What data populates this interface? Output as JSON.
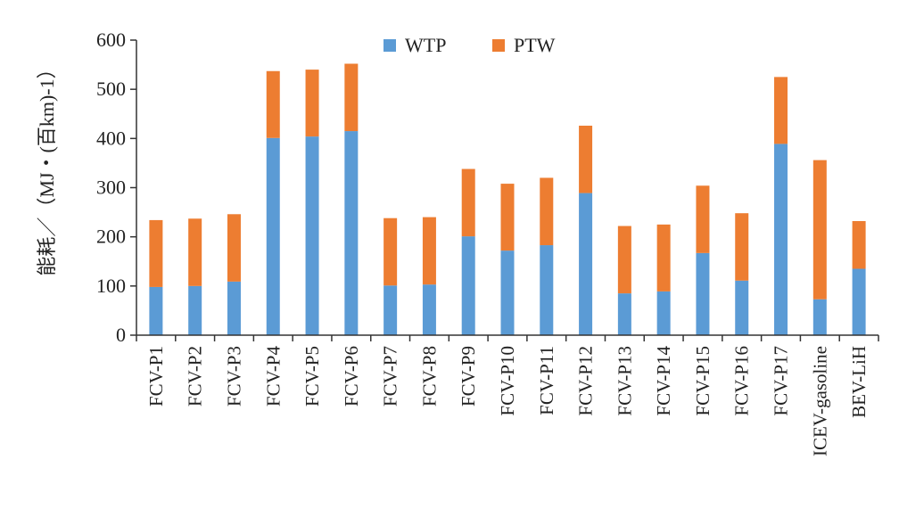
{
  "chart_data": {
    "type": "bar",
    "stacked": true,
    "ylabel": "能耗／（MJ・(百km)-1）",
    "ylim": [
      0,
      600
    ],
    "yticks": [
      "0",
      "100",
      "200",
      "300",
      "400",
      "500",
      "600"
    ],
    "grid": false,
    "legend_position": "top-center",
    "categories": [
      "FCV-P1",
      "FCV-P2",
      "FCV-P3",
      "FCV-P4",
      "FCV-P5",
      "FCV-P6",
      "FCV-P7",
      "FCV-P8",
      "FCV-P9",
      "FCV-P10",
      "FCV-P11",
      "FCV-P12",
      "FCV-P13",
      "FCV-P14",
      "FCV-P15",
      "FCV-P16",
      "FCV-P17",
      "ICEV-gasoline",
      "BEV-LiH"
    ],
    "series": [
      {
        "name": "WTP",
        "color": "#5b9bd5",
        "values": [
          98,
          100,
          109,
          401,
          404,
          415,
          101,
          103,
          201,
          172,
          183,
          289,
          85,
          89,
          167,
          111,
          389,
          73,
          135
        ]
      },
      {
        "name": "PTW",
        "color": "#ed7d31",
        "values": [
          136,
          137,
          137,
          136,
          136,
          137,
          137,
          137,
          137,
          136,
          137,
          137,
          137,
          136,
          137,
          137,
          136,
          283,
          97
        ]
      }
    ]
  }
}
